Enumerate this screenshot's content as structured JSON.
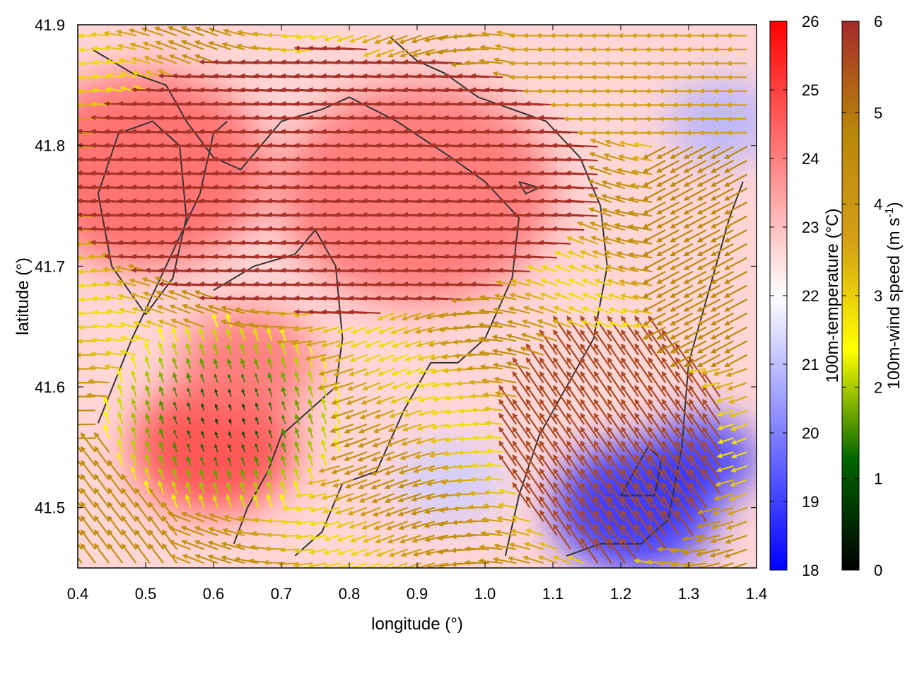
{
  "chart_data": {
    "type": "heatmap",
    "xlabel": "longitude (°)",
    "ylabel": "latitude (°)",
    "xlim": [
      0.4,
      1.4
    ],
    "ylim": [
      41.45,
      41.9
    ],
    "xticks": [
      "0.4",
      "0.5",
      "0.6",
      "0.7",
      "0.8",
      "0.9",
      "1.0",
      "1.1",
      "1.2",
      "1.3",
      "1.4"
    ],
    "xtick_values": [
      0.4,
      0.5,
      0.6,
      0.7,
      0.8,
      0.9,
      1.0,
      1.1,
      1.2,
      1.3,
      1.4
    ],
    "yticks": [
      "41.5",
      "41.6",
      "41.7",
      "41.8",
      "41.9"
    ],
    "ytick_values": [
      41.5,
      41.6,
      41.7,
      41.8,
      41.9
    ],
    "temperature_colorbar": {
      "label": "100m-temperature (°C)",
      "range": [
        18,
        26
      ],
      "ticks": [
        "18",
        "19",
        "20",
        "21",
        "22",
        "23",
        "24",
        "25",
        "26"
      ],
      "colors": [
        "#0000ff",
        "#ffffff",
        "#ff0000"
      ]
    },
    "wind_colorbar": {
      "label": "100m-wind speed (m s",
      "label_sup": "-1",
      "label_end": ")",
      "range": [
        0,
        6
      ],
      "ticks": [
        "0",
        "1",
        "2",
        "3",
        "4",
        "5",
        "6"
      ],
      "colors": [
        "#000000",
        "#006400",
        "#ffff00",
        "#d4a017",
        "#b8860b",
        "#a52a2a"
      ]
    },
    "temperature_blobs": [
      {
        "lon": 0.5,
        "lat": 41.78,
        "t": 24.5,
        "r": 0.18
      },
      {
        "lon": 0.9,
        "lat": 41.76,
        "t": 24.3,
        "r": 0.2
      },
      {
        "lon": 0.6,
        "lat": 41.55,
        "t": 25.0,
        "r": 0.12
      },
      {
        "lon": 0.65,
        "lat": 41.62,
        "t": 24.2,
        "r": 0.1
      },
      {
        "lon": 1.22,
        "lat": 41.5,
        "t": 18.6,
        "r": 0.12
      },
      {
        "lon": 1.32,
        "lat": 41.54,
        "t": 18.8,
        "r": 0.08
      },
      {
        "lon": 1.35,
        "lat": 41.82,
        "t": 20.8,
        "r": 0.08
      },
      {
        "lon": 0.95,
        "lat": 41.52,
        "t": 21.2,
        "r": 0.08
      }
    ],
    "contours": [
      [
        [
          0.42,
          41.88
        ],
        [
          0.48,
          41.86
        ],
        [
          0.53,
          41.85
        ],
        [
          0.56,
          41.82
        ],
        [
          0.6,
          41.79
        ],
        [
          0.64,
          41.78
        ],
        [
          0.7,
          41.82
        ],
        [
          0.76,
          41.83
        ],
        [
          0.8,
          41.84
        ],
        [
          0.87,
          41.82
        ],
        [
          0.95,
          41.79
        ],
        [
          1.0,
          41.77
        ],
        [
          1.05,
          41.74
        ],
        [
          1.04,
          41.69
        ],
        [
          1.0,
          41.64
        ],
        [
          0.96,
          41.62
        ],
        [
          0.92,
          41.62
        ],
        [
          0.88,
          41.58
        ],
        [
          0.84,
          41.53
        ],
        [
          0.79,
          41.52
        ],
        [
          0.76,
          41.48
        ],
        [
          0.72,
          41.46
        ]
      ],
      [
        [
          0.43,
          41.57
        ],
        [
          0.48,
          41.64
        ],
        [
          0.53,
          41.7
        ],
        [
          0.58,
          41.76
        ],
        [
          0.6,
          41.81
        ],
        [
          0.62,
          41.82
        ]
      ],
      [
        [
          0.5,
          41.66
        ],
        [
          0.45,
          41.7
        ],
        [
          0.43,
          41.76
        ],
        [
          0.46,
          41.81
        ],
        [
          0.51,
          41.82
        ],
        [
          0.55,
          41.8
        ],
        [
          0.56,
          41.74
        ],
        [
          0.54,
          41.69
        ],
        [
          0.5,
          41.66
        ]
      ],
      [
        [
          0.6,
          41.68
        ],
        [
          0.66,
          41.7
        ],
        [
          0.72,
          41.71
        ],
        [
          0.75,
          41.73
        ],
        [
          0.78,
          41.7
        ],
        [
          0.79,
          41.64
        ],
        [
          0.78,
          41.6
        ],
        [
          0.74,
          41.58
        ],
        [
          0.7,
          41.56
        ],
        [
          0.68,
          41.53
        ],
        [
          0.65,
          41.5
        ],
        [
          0.63,
          41.47
        ]
      ],
      [
        [
          0.86,
          41.89
        ],
        [
          0.9,
          41.87
        ],
        [
          0.94,
          41.86
        ],
        [
          0.99,
          41.84
        ],
        [
          1.04,
          41.83
        ],
        [
          1.09,
          41.82
        ],
        [
          1.14,
          41.79
        ],
        [
          1.17,
          41.75
        ],
        [
          1.18,
          41.7
        ],
        [
          1.16,
          41.64
        ],
        [
          1.12,
          41.6
        ],
        [
          1.08,
          41.56
        ],
        [
          1.05,
          41.51
        ],
        [
          1.03,
          41.46
        ]
      ],
      [
        [
          1.12,
          41.46
        ],
        [
          1.17,
          41.47
        ],
        [
          1.23,
          41.47
        ],
        [
          1.27,
          41.49
        ],
        [
          1.29,
          41.55
        ],
        [
          1.3,
          41.62
        ],
        [
          1.33,
          41.68
        ],
        [
          1.36,
          41.74
        ],
        [
          1.38,
          41.77
        ]
      ],
      [
        [
          1.2,
          41.51
        ],
        [
          1.25,
          41.51
        ],
        [
          1.26,
          41.54
        ],
        [
          1.24,
          41.55
        ],
        [
          1.2,
          41.51
        ]
      ],
      [
        [
          1.05,
          41.77
        ],
        [
          1.08,
          41.765
        ],
        [
          1.06,
          41.76
        ],
        [
          1.05,
          41.77
        ]
      ]
    ]
  }
}
